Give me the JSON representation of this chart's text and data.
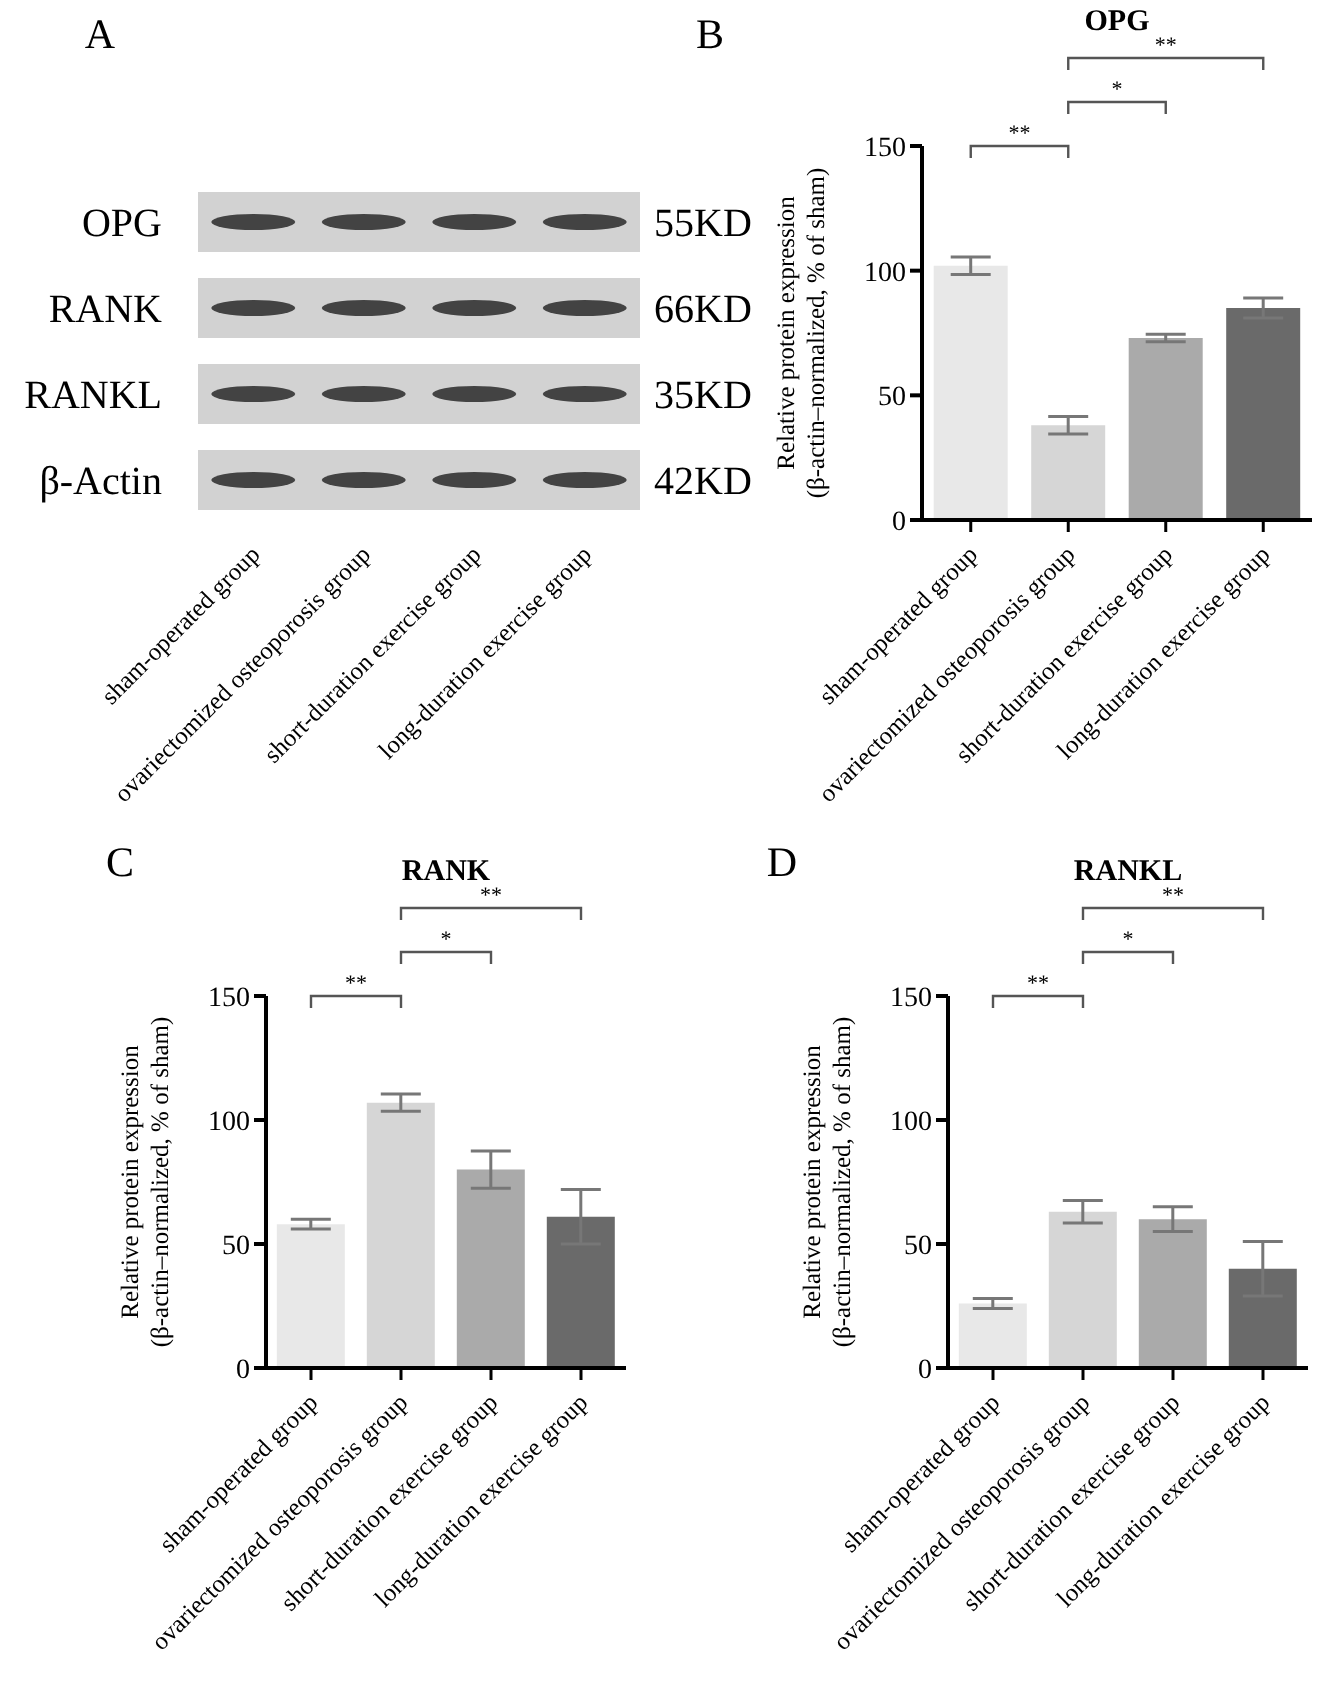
{
  "chart_data": [
    {
      "type": "other",
      "title": "A",
      "categories": [
        "sham-operated group",
        "ovariectomized osteoporosis group",
        "short-duration exercise group",
        "long-duration exercise group"
      ],
      "annotations": [
        "OPG",
        "RANK",
        "RANKL",
        "β-Actin",
        "55KD",
        "66KD",
        "35KD",
        "42KD"
      ]
    },
    {
      "type": "bar",
      "title": "OPG",
      "ylabel": "Relative protein expression (β-actin–normalized, % of sham)",
      "categories": [
        "sham-operated group",
        "ovariectomized osteoporosis group",
        "short-duration exercise group",
        "long-duration exercise group"
      ],
      "values": [
        102,
        38,
        73,
        85
      ],
      "errors": [
        3.5,
        3.5,
        1.5,
        4
      ],
      "colors": [
        "#e8e8e8",
        "#d6d6d6",
        "#aaaaaa",
        "#6a6a6a"
      ],
      "ylim": [
        0,
        150
      ],
      "yticks": [
        0,
        50,
        100,
        150
      ],
      "grid": false,
      "legend": false,
      "annotations": [
        "B",
        "**",
        "*",
        "**"
      ]
    },
    {
      "type": "bar",
      "title": "RANK",
      "ylabel": "Relative protein expression (β-actin–normalized, % of sham)",
      "categories": [
        "sham-operated group",
        "ovariectomized osteoporosis group",
        "short-duration exercise group",
        "long-duration exercise group"
      ],
      "values": [
        58,
        107,
        80,
        61
      ],
      "errors": [
        2,
        3.5,
        7.5,
        11
      ],
      "colors": [
        "#e8e8e8",
        "#d6d6d6",
        "#aaaaaa",
        "#6a6a6a"
      ],
      "ylim": [
        0,
        150
      ],
      "yticks": [
        0,
        50,
        100,
        150
      ],
      "grid": false,
      "legend": false,
      "annotations": [
        "C",
        "**",
        "*",
        "**"
      ]
    },
    {
      "type": "bar",
      "title": "RANKL",
      "ylabel": "Relative protein expression (β-actin–normalized, % of sham)",
      "categories": [
        "sham-operated group",
        "ovariectomized osteoporosis group",
        "short-duration exercise group",
        "long-duration exercise group"
      ],
      "values": [
        26,
        63,
        60,
        40
      ],
      "errors": [
        2,
        4.5,
        5,
        11
      ],
      "colors": [
        "#e8e8e8",
        "#d6d6d6",
        "#aaaaaa",
        "#6a6a6a"
      ],
      "ylim": [
        0,
        150
      ],
      "yticks": [
        0,
        50,
        100,
        150
      ],
      "grid": false,
      "legend": false,
      "annotations": [
        "D",
        "**",
        "*",
        "**"
      ]
    }
  ]
}
